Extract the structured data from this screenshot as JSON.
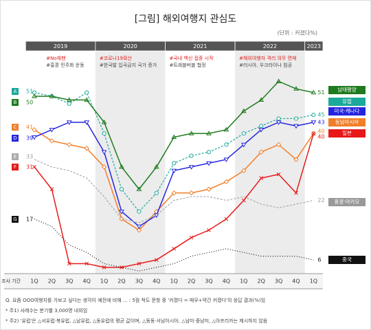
{
  "chart_data": {
    "type": "line",
    "title": "[그림] 해외여행지 관심도",
    "unit": "(단위 : 커졌다%)",
    "years": [
      "2019",
      "2020",
      "2021",
      "2022",
      "2023"
    ],
    "x_axis_label": "조사 기간",
    "categories": [
      "1Q",
      "2Q",
      "3Q",
      "4Q",
      "1Q",
      "2Q",
      "3Q",
      "4Q",
      "1Q",
      "2Q",
      "3Q",
      "4Q",
      "1Q",
      "2Q",
      "3Q",
      "4Q",
      "1Q"
    ],
    "annotations": [
      {
        "headline": "#No재팬",
        "detail": "#홍콩 민주화 운동"
      },
      {
        "headline": "#코로나19확산",
        "detail": "#한국발 입국금지 국가 증가"
      },
      {
        "headline": "#국내 백신 접종 시작",
        "detail": "#트래블버블 협정"
      },
      {
        "headline": "#해외여행자 격리 의무 면제",
        "detail": "#러시아, 우크라이나 침공"
      }
    ],
    "series": [
      {
        "letter": "A",
        "name": "유럽",
        "color": "#1aa99a",
        "marker": "circle",
        "dash": "dashed",
        "values": [
          51,
          50,
          48,
          51,
          40,
          25,
          19,
          24,
          32,
          34,
          35,
          37,
          40,
          42,
          44,
          44,
          45
        ]
      },
      {
        "letter": "B",
        "name": "남태평양",
        "color": "#1e7a1e",
        "marker": "triangle",
        "dash": "solid",
        "values": [
          50,
          50,
          49,
          49,
          43,
          31,
          25,
          31,
          39,
          40,
          40,
          41,
          46,
          49,
          54,
          52,
          51
        ]
      },
      {
        "letter": "C",
        "name": "동남아시아",
        "color": "#f07f2a",
        "marker": "diamond",
        "dash": "solid",
        "values": [
          41,
          38,
          37,
          36,
          31,
          17,
          14,
          19,
          24,
          24,
          25,
          27,
          30,
          35,
          37,
          33,
          40
        ]
      },
      {
        "letter": "D",
        "name": "미국·캐나다",
        "color": "#2424e0",
        "marker": "triangle-down",
        "dash": "solid",
        "values": [
          39,
          41,
          43,
          43,
          35,
          19,
          15,
          18,
          30,
          31,
          32,
          33,
          37,
          41,
          43,
          42,
          43
        ]
      },
      {
        "letter": "E",
        "name": "홍콩·마카오",
        "color": "#aaaaaa",
        "marker": "none",
        "dash": "dashed",
        "values": [
          33,
          31,
          30,
          28,
          23,
          17,
          16,
          18,
          22,
          23,
          23,
          22,
          23,
          21,
          20,
          21,
          22
        ]
      },
      {
        "letter": "F",
        "name": "일본",
        "color": "#e81818",
        "marker": "x",
        "dash": "solid",
        "values": [
          31,
          25,
          5,
          5,
          4,
          4,
          5,
          6,
          9,
          12,
          14,
          17,
          22,
          28,
          29,
          24,
          40
        ]
      },
      {
        "letter": "G",
        "name": "중국",
        "color": "#111111",
        "marker": "none",
        "dash": "dotted",
        "values": [
          17,
          15,
          10,
          8,
          5,
          4,
          3,
          4,
          5,
          7,
          8,
          9,
          8,
          7,
          7,
          7,
          6
        ]
      }
    ],
    "notes": [
      "Q. 요즘 OOO여행지를 가보고 싶다는 생각이 예전에 비해 ... : 5점 척도 문항 중 '커졌다 = 매우+약간 커졌다'의 응답 결과(%)임",
      "* 주1) 사례수는 분기별 3,000명 내외임",
      "* 주2) '유럽'은 △서유럽·북유럽, △남유럽, △동유럽의 평균 값이며, △동동·서남아시아, △남미·중남미, △아프리카는 제시하지 않음"
    ]
  }
}
